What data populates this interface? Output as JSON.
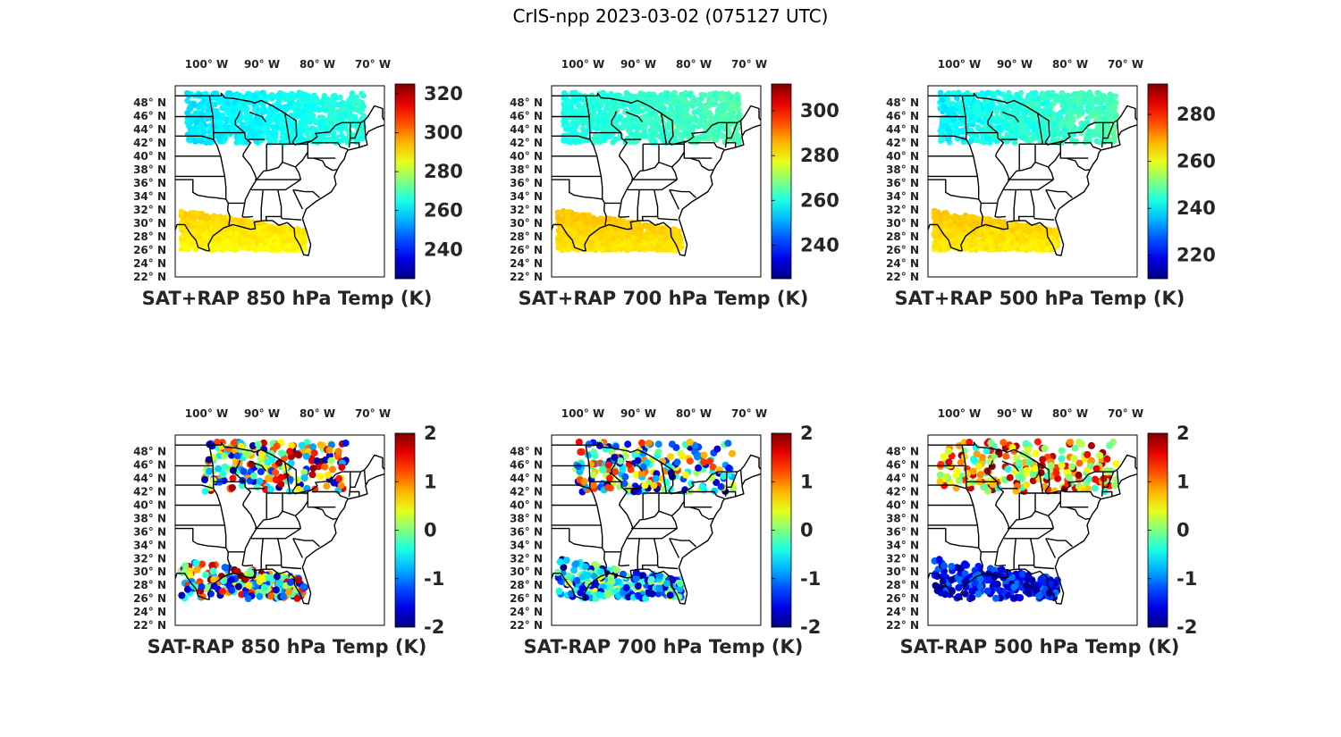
{
  "title": "CrIS-npp 2023-03-02 (075127 UTC)",
  "chart_data": [
    {
      "type": "scatter",
      "title": "SAT+RAP 850 hPa Temp (K)",
      "lon_ticks": [
        "100",
        "90",
        "80",
        "70"
      ],
      "lat_ticks": [
        "48",
        "46",
        "44",
        "42",
        "40",
        "38",
        "36",
        "34",
        "32",
        "30",
        "28",
        "26",
        "24",
        "22"
      ],
      "lon_hemisphere": "W",
      "lat_hemisphere": "N",
      "colorbar": {
        "ticks": [
          "320",
          "300",
          "280",
          "260",
          "240"
        ],
        "tick_values": [
          320,
          300,
          280,
          260,
          240
        ],
        "range": [
          225,
          325
        ]
      },
      "regions": [
        {
          "name": "northern swath",
          "lon_range": [
            -101,
            -71
          ],
          "lat_range": [
            42,
            49.5
          ],
          "value_range": [
            258,
            268
          ]
        },
        {
          "name": "southern swath",
          "lon_range": [
            -102,
            -81
          ],
          "lat_range": [
            26,
            32
          ],
          "value_range": [
            286,
            294
          ]
        }
      ]
    },
    {
      "type": "scatter",
      "title": "SAT+RAP 700 hPa Temp (K)",
      "lon_ticks": [
        "100",
        "90",
        "80",
        "70"
      ],
      "lat_ticks": [
        "48",
        "46",
        "44",
        "42",
        "40",
        "38",
        "36",
        "34",
        "32",
        "30",
        "28",
        "26",
        "24",
        "22"
      ],
      "lon_hemisphere": "W",
      "lat_hemisphere": "N",
      "colorbar": {
        "ticks": [
          "300",
          "280",
          "260",
          "240"
        ],
        "tick_values": [
          300,
          280,
          260,
          240
        ],
        "range": [
          225,
          312
        ]
      },
      "regions": [
        {
          "name": "northern swath",
          "lon_range": [
            -101,
            -71
          ],
          "lat_range": [
            42,
            49.5
          ],
          "value_range": [
            258,
            266
          ]
        },
        {
          "name": "southern swath",
          "lon_range": [
            -102,
            -81
          ],
          "lat_range": [
            26,
            32
          ],
          "value_range": [
            280,
            286
          ]
        }
      ]
    },
    {
      "type": "scatter",
      "title": "SAT+RAP 500 hPa Temp (K)",
      "lon_ticks": [
        "100",
        "90",
        "80",
        "70"
      ],
      "lat_ticks": [
        "48",
        "46",
        "44",
        "42",
        "40",
        "38",
        "36",
        "34",
        "32",
        "30",
        "28",
        "26",
        "24",
        "22"
      ],
      "lon_hemisphere": "W",
      "lat_hemisphere": "N",
      "colorbar": {
        "ticks": [
          "280",
          "260",
          "240",
          "220"
        ],
        "tick_values": [
          280,
          260,
          240,
          220
        ],
        "range": [
          210,
          293
        ]
      },
      "regions": [
        {
          "name": "northern swath",
          "lon_range": [
            -101,
            -71
          ],
          "lat_range": [
            42,
            49.5
          ],
          "value_range": [
            238,
            250
          ]
        },
        {
          "name": "southern swath",
          "lon_range": [
            -102,
            -81
          ],
          "lat_range": [
            26,
            32
          ],
          "value_range": [
            262,
            268
          ]
        }
      ]
    },
    {
      "type": "scatter",
      "title": "SAT-RAP 850 hPa Temp (K)",
      "lon_ticks": [
        "100",
        "90",
        "80",
        "70"
      ],
      "lat_ticks": [
        "48",
        "46",
        "44",
        "42",
        "40",
        "38",
        "36",
        "34",
        "32",
        "30",
        "28",
        "26",
        "24",
        "22"
      ],
      "lon_hemisphere": "W",
      "lat_hemisphere": "N",
      "colorbar": {
        "ticks": [
          "2",
          "1",
          "0",
          "-1",
          "-2"
        ],
        "tick_values": [
          2,
          1,
          0,
          -1,
          -2
        ],
        "range": [
          -2,
          2
        ]
      },
      "regions": [
        {
          "name": "northern swath",
          "lon_range": [
            -98,
            -74
          ],
          "lat_range": [
            42,
            49.5
          ],
          "value_range": [
            -2,
            2
          ]
        },
        {
          "name": "southern swath",
          "lon_range": [
            -102,
            -81
          ],
          "lat_range": [
            26,
            32
          ],
          "value_range": [
            -2,
            2
          ]
        }
      ]
    },
    {
      "type": "scatter",
      "title": "SAT-RAP 700 hPa Temp (K)",
      "lon_ticks": [
        "100",
        "90",
        "80",
        "70"
      ],
      "lat_ticks": [
        "48",
        "46",
        "44",
        "42",
        "40",
        "38",
        "36",
        "34",
        "32",
        "30",
        "28",
        "26",
        "24",
        "22"
      ],
      "lon_hemisphere": "W",
      "lat_hemisphere": "N",
      "colorbar": {
        "ticks": [
          "2",
          "1",
          "0",
          "-1",
          "-2"
        ],
        "tick_values": [
          2,
          1,
          0,
          -1,
          -2
        ],
        "range": [
          -2,
          2
        ]
      },
      "regions": [
        {
          "name": "northern swath",
          "lon_range": [
            -99,
            -72
          ],
          "lat_range": [
            42,
            49.5
          ],
          "value_range": [
            -2,
            1.5
          ]
        },
        {
          "name": "southern swath",
          "lon_range": [
            -102,
            -81
          ],
          "lat_range": [
            26,
            32
          ],
          "value_range": [
            -2,
            0.5
          ]
        }
      ]
    },
    {
      "type": "scatter",
      "title": "SAT-RAP 500 hPa Temp (K)",
      "lon_ticks": [
        "100",
        "90",
        "80",
        "70"
      ],
      "lat_ticks": [
        "48",
        "46",
        "44",
        "42",
        "40",
        "38",
        "36",
        "34",
        "32",
        "30",
        "28",
        "26",
        "24",
        "22"
      ],
      "lon_hemisphere": "W",
      "lat_hemisphere": "N",
      "colorbar": {
        "ticks": [
          "2",
          "1",
          "0",
          "-1",
          "-2"
        ],
        "tick_values": [
          2,
          1,
          0,
          -1,
          -2
        ],
        "range": [
          -2,
          2
        ]
      },
      "regions": [
        {
          "name": "northern swath",
          "lon_range": [
            -101,
            -71
          ],
          "lat_range": [
            42,
            49.5
          ],
          "value_range": [
            -0.5,
            2
          ]
        },
        {
          "name": "southern swath",
          "lon_range": [
            -102,
            -81
          ],
          "lat_range": [
            26,
            32
          ],
          "value_range": [
            -2,
            -1
          ]
        }
      ]
    }
  ]
}
